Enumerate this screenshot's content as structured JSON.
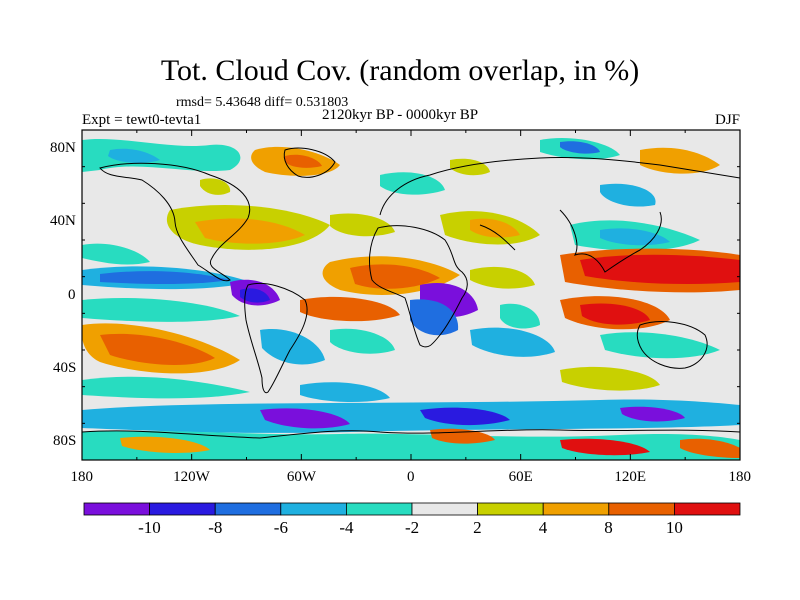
{
  "title": "Tot. Cloud Cov. (random overlap, in %)",
  "stats": "rmsd= 5.43648 diff= 0.531803",
  "experiment": "Expt = tewt0-tevta1",
  "period": "2120kyr BP - 0000kyr BP",
  "season": "DJF",
  "chart_data": {
    "type": "heatmap",
    "variable": "Total cloud cover difference (random overlap, %)",
    "x_range": [
      -180,
      180
    ],
    "y_range": [
      -90,
      90
    ],
    "x_tick_labels": [
      "180",
      "120W",
      "60W",
      "0",
      "60E",
      "120E",
      "180"
    ],
    "x_tick_values": [
      -180,
      -120,
      -60,
      0,
      60,
      120,
      180
    ],
    "y_tick_labels": [
      "80N",
      "40N",
      "0",
      "40S",
      "80S"
    ],
    "y_tick_values": [
      80,
      40,
      0,
      -40,
      -80
    ],
    "colorbar": {
      "levels": [
        -10,
        -8,
        -6,
        -4,
        -2,
        2,
        4,
        8,
        10
      ],
      "labels": [
        "-10",
        "-8",
        "-6",
        "-4",
        "-2",
        "2",
        "4",
        "8",
        "10"
      ],
      "colors": [
        "#7a0fdc",
        "#2a1ae0",
        "#1f6ee0",
        "#1fb0e0",
        "#28dcc0",
        "#e8e8e8",
        "#c8d000",
        "#f0a000",
        "#e86000",
        "#e01010"
      ]
    }
  },
  "colors": {
    "background": "#ffffff",
    "map_fill": "#e8e8e8",
    "coast": "#000000"
  }
}
